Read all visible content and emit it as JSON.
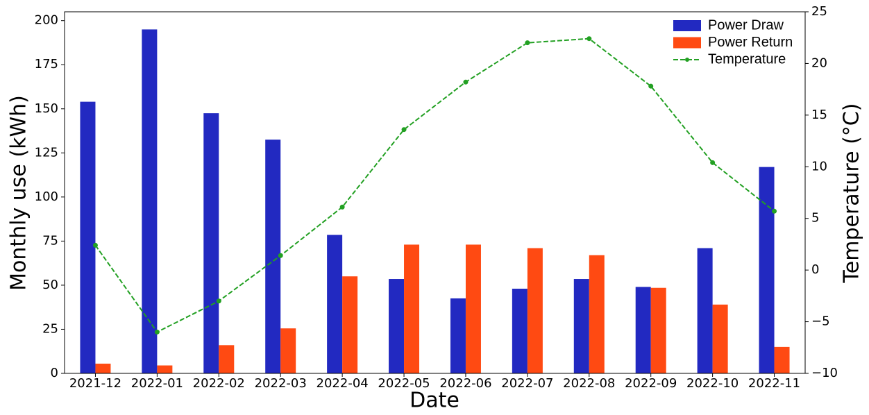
{
  "chart_data": {
    "type": "bar",
    "xlabel": "Date",
    "ylabel": "Monthly use (kWh)",
    "y2label": "Temperature (°C)",
    "categories": [
      "2021-12",
      "2022-01",
      "2022-02",
      "2022-03",
      "2022-04",
      "2022-05",
      "2022-06",
      "2022-07",
      "2022-08",
      "2022-09",
      "2022-10",
      "2022-11"
    ],
    "series": [
      {
        "name": "Power Draw",
        "color": "#2229c1",
        "values": [
          154,
          195,
          147.5,
          132.5,
          78.5,
          53.5,
          42.5,
          48,
          53.5,
          49,
          71,
          117
        ]
      },
      {
        "name": "Power Return",
        "color": "#ff4a12",
        "values": [
          5.5,
          4.5,
          16,
          25.5,
          55,
          73,
          73,
          71,
          67,
          48.5,
          39,
          15
        ]
      },
      {
        "name": "Temperature",
        "color": "#22a022",
        "type": "line",
        "axis": "y2",
        "values": [
          2.4,
          -6.0,
          -3.0,
          1.4,
          6.1,
          13.6,
          18.2,
          22.0,
          22.4,
          17.8,
          10.4,
          5.7
        ]
      }
    ],
    "ylim": [
      0,
      205
    ],
    "yticks": [
      0,
      25,
      50,
      75,
      100,
      125,
      150,
      175,
      200
    ],
    "y2lim": [
      -10,
      25
    ],
    "y2ticks": [
      {
        "value": -10,
        "label": "−10"
      },
      {
        "value": -5,
        "label": "−5"
      },
      0,
      5,
      10,
      15,
      20,
      25
    ],
    "legend": "upper right"
  }
}
